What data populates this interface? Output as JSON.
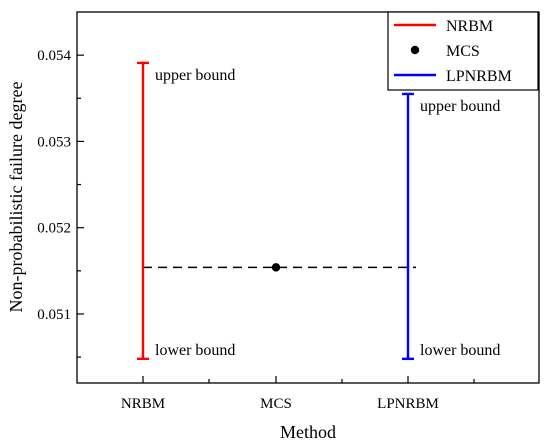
{
  "chart_data": {
    "type": "errorbar",
    "xlabel": "Method",
    "ylabel": "Non-probabilistic failure degree",
    "categories": [
      "NRBM",
      "MCS",
      "LPNRBM"
    ],
    "ylim": [
      0.0502,
      0.0545
    ],
    "yticks": [
      0.051,
      0.052,
      0.053,
      0.054
    ],
    "ytick_labels": [
      "0.051",
      "0.052",
      "0.053",
      "0.054"
    ],
    "intervals": [
      {
        "name": "NRBM",
        "category": "NRBM",
        "lower": 0.05048,
        "upper": 0.05391,
        "color": "#ff0000",
        "upper_label": "upper bound",
        "lower_label": "lower bound"
      },
      {
        "name": "LPNRBM",
        "category": "LPNRBM",
        "lower": 0.05048,
        "upper": 0.05355,
        "color": "#0000ff",
        "upper_label": "upper bound",
        "lower_label": "lower bound"
      }
    ],
    "point": {
      "name": "MCS",
      "category": "MCS",
      "value": 0.05154,
      "color": "#000000"
    },
    "reference_line": {
      "value": 0.05154,
      "style": "dashed",
      "from": "NRBM",
      "to": "LPNRBM"
    },
    "legend": {
      "placement": "top-right",
      "entries": [
        {
          "label": "NRBM",
          "marker": "line",
          "color": "#ff0000"
        },
        {
          "label": "MCS",
          "marker": "dot",
          "color": "#000000"
        },
        {
          "label": "LPNRBM",
          "marker": "line",
          "color": "#0000ff"
        }
      ]
    },
    "grid": false
  }
}
